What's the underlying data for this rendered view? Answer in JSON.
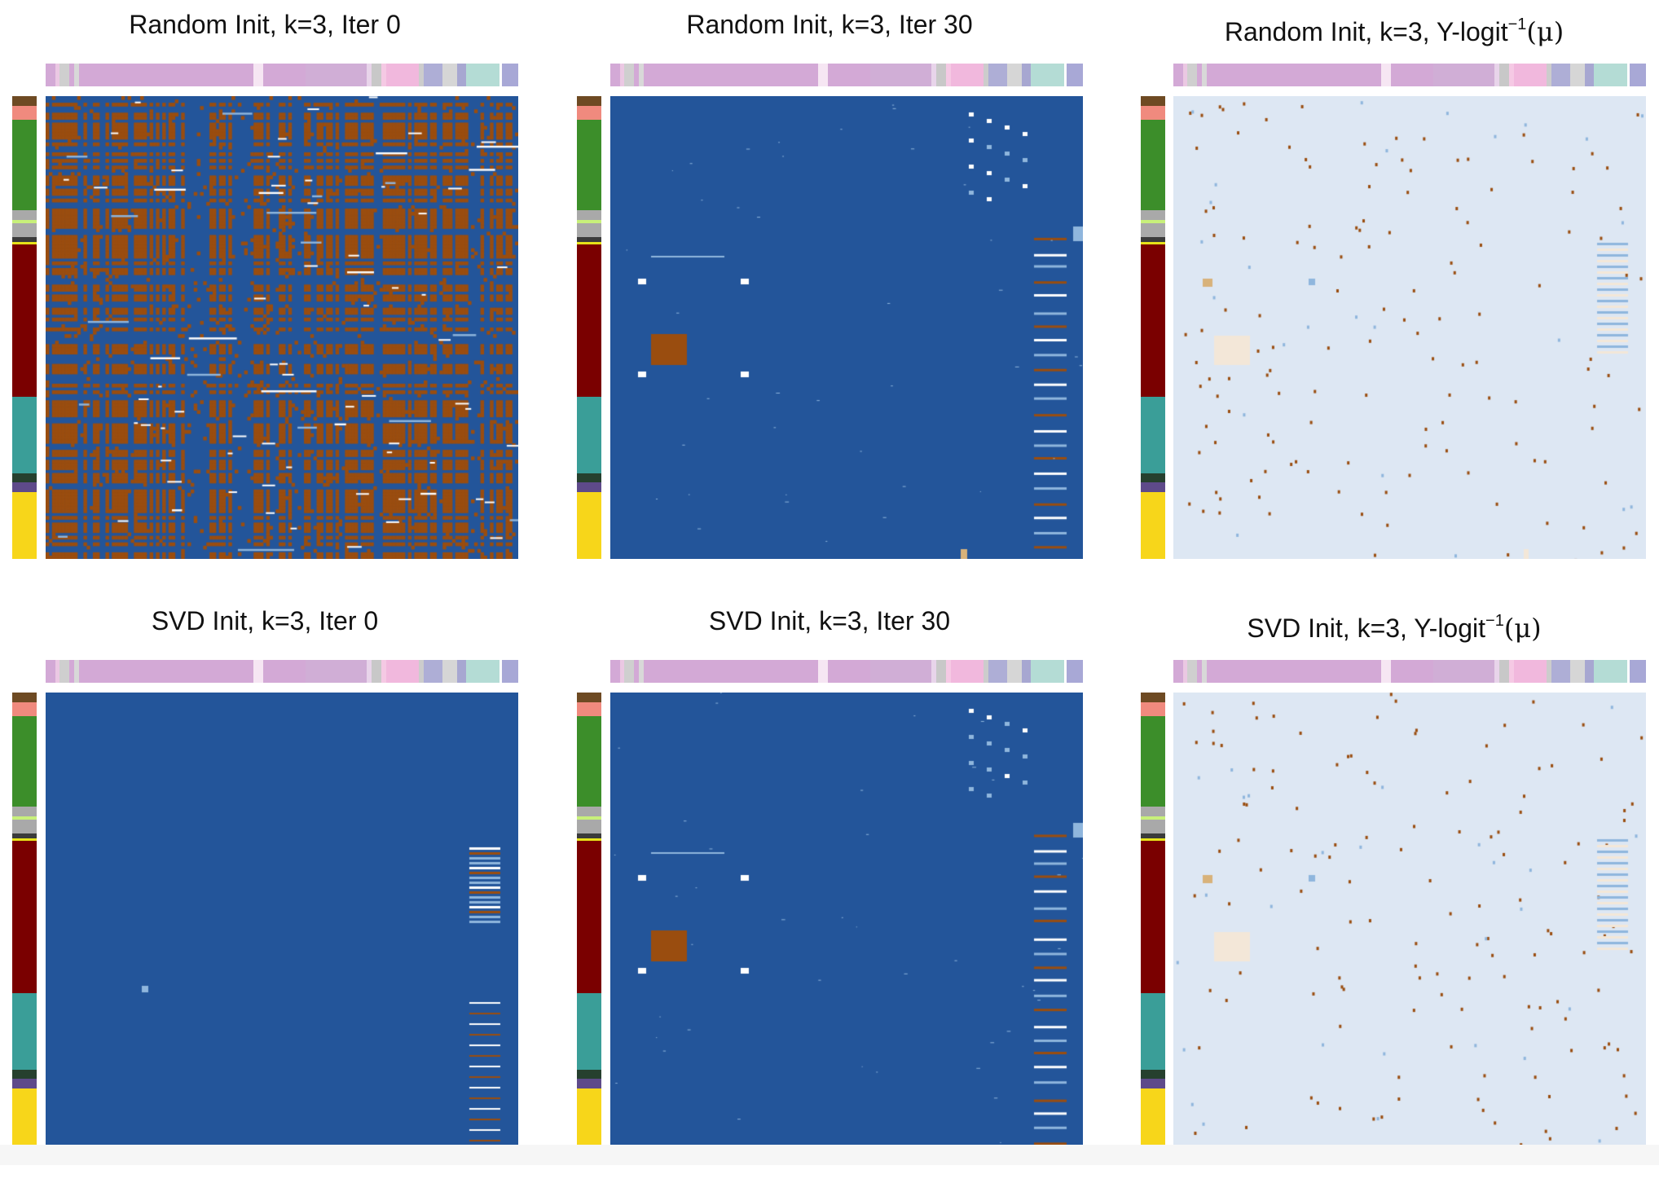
{
  "colors": {
    "low": "#23559a",
    "high": "#9a4d0f",
    "background_light": "#dde7f3",
    "mid_light": "#8fb6dd",
    "mid_tan": "#d8b27a",
    "white": "#ffffff"
  },
  "column_annotation": {
    "segments": [
      {
        "color": "#d3a9d6",
        "w": 2
      },
      {
        "color": "#ebc8e3",
        "w": 1
      },
      {
        "color": "#cfcfcf",
        "w": 2
      },
      {
        "color": "#d3a9d6",
        "w": 1
      },
      {
        "color": "#d8d8d8",
        "w": 1
      },
      {
        "color": "#d3a9d6",
        "w": 37
      },
      {
        "color": "#f6e6f3",
        "w": 2
      },
      {
        "color": "#d3a9d6",
        "w": 9
      },
      {
        "color": "#d0aed6",
        "w": 13
      },
      {
        "color": "#e8d4ea",
        "w": 1
      },
      {
        "color": "#c8c8c8",
        "w": 2
      },
      {
        "color": "#f5c9e4",
        "w": 1
      },
      {
        "color": "#f1b8dd",
        "w": 7
      },
      {
        "color": "#cccccc",
        "w": 1
      },
      {
        "color": "#aeaed6",
        "w": 4
      },
      {
        "color": "#d6d6d6",
        "w": 3
      },
      {
        "color": "#a7a7d1",
        "w": 2
      },
      {
        "color": "#b4dcd5",
        "w": 7
      },
      {
        "color": "#fefefe",
        "w": 0.5
      },
      {
        "color": "#a8a8d6",
        "w": 3.5
      }
    ]
  },
  "row_annotation": {
    "segments": [
      {
        "color": "#6e4a23",
        "h": 2
      },
      {
        "color": "#f08a7e",
        "h": 3
      },
      {
        "color": "#3c8e2a",
        "h": 19
      },
      {
        "color": "#a9a9a9",
        "h": 2
      },
      {
        "color": "#c8f07a",
        "h": 0.6
      },
      {
        "color": "#a9a9a9",
        "h": 3
      },
      {
        "color": "#3b3b3b",
        "h": 1
      },
      {
        "color": "#e6e21a",
        "h": 0.5
      },
      {
        "color": "#7a0000",
        "h": 32
      },
      {
        "color": "#3a9e98",
        "h": 16
      },
      {
        "color": "#26402e",
        "h": 2
      },
      {
        "color": "#5e4a8a",
        "h": 2
      },
      {
        "color": "#f7d61a",
        "h": 14
      }
    ]
  },
  "panels": [
    {
      "title_prefix": "Random Init, k=3, Iter 0",
      "title_sup": "",
      "title_mu": ""
    },
    {
      "title_prefix": "Random Init, k=3, Iter 30",
      "title_sup": "",
      "title_mu": ""
    },
    {
      "title_prefix": "Random Init, k=3, Y-logit",
      "title_sup": "−1",
      "title_mu": "(μ)"
    },
    {
      "title_prefix": "SVD Init, k=3, Iter 0",
      "title_sup": "",
      "title_mu": ""
    },
    {
      "title_prefix": "SVD Init, k=3, Iter 30",
      "title_sup": "",
      "title_mu": ""
    },
    {
      "title_prefix": "SVD Init, k=3, Y-logit",
      "title_sup": "−1",
      "title_mu": "(μ)"
    }
  ],
  "chart_data": [
    {
      "type": "heatmap",
      "title": "Random Init, k=3, Iter 0",
      "pattern": "dense-mixed",
      "palette": [
        "#23559a",
        "#9a4d0f",
        "#8fb6dd",
        "#ffffff"
      ]
    },
    {
      "type": "heatmap",
      "title": "Random Init, k=3, Iter 30",
      "pattern": "mostly-low-sparse-blocks",
      "palette": [
        "#23559a",
        "#9a4d0f",
        "#8fb6dd",
        "#ffffff"
      ]
    },
    {
      "type": "heatmap",
      "title": "Random Init, k=3, Y-logit−1(μ)",
      "pattern": "light-background-sparse-points",
      "palette": [
        "#dde7f3",
        "#9a4d0f",
        "#8fb6dd",
        "#f3e7d8"
      ]
    },
    {
      "type": "heatmap",
      "title": "SVD Init, k=3, Iter 0",
      "pattern": "uniform-low-right-columns",
      "palette": [
        "#23559a",
        "#9a4d0f",
        "#8fb6dd",
        "#ffffff"
      ]
    },
    {
      "type": "heatmap",
      "title": "SVD Init, k=3, Iter 30",
      "pattern": "mostly-low-sparse-blocks",
      "palette": [
        "#23559a",
        "#9a4d0f",
        "#8fb6dd",
        "#ffffff"
      ]
    },
    {
      "type": "heatmap",
      "title": "SVD Init, k=3, Y-logit−1(μ)",
      "pattern": "light-background-sparse-points",
      "palette": [
        "#dde7f3",
        "#9a4d0f",
        "#8fb6dd",
        "#f3e7d8"
      ]
    }
  ]
}
